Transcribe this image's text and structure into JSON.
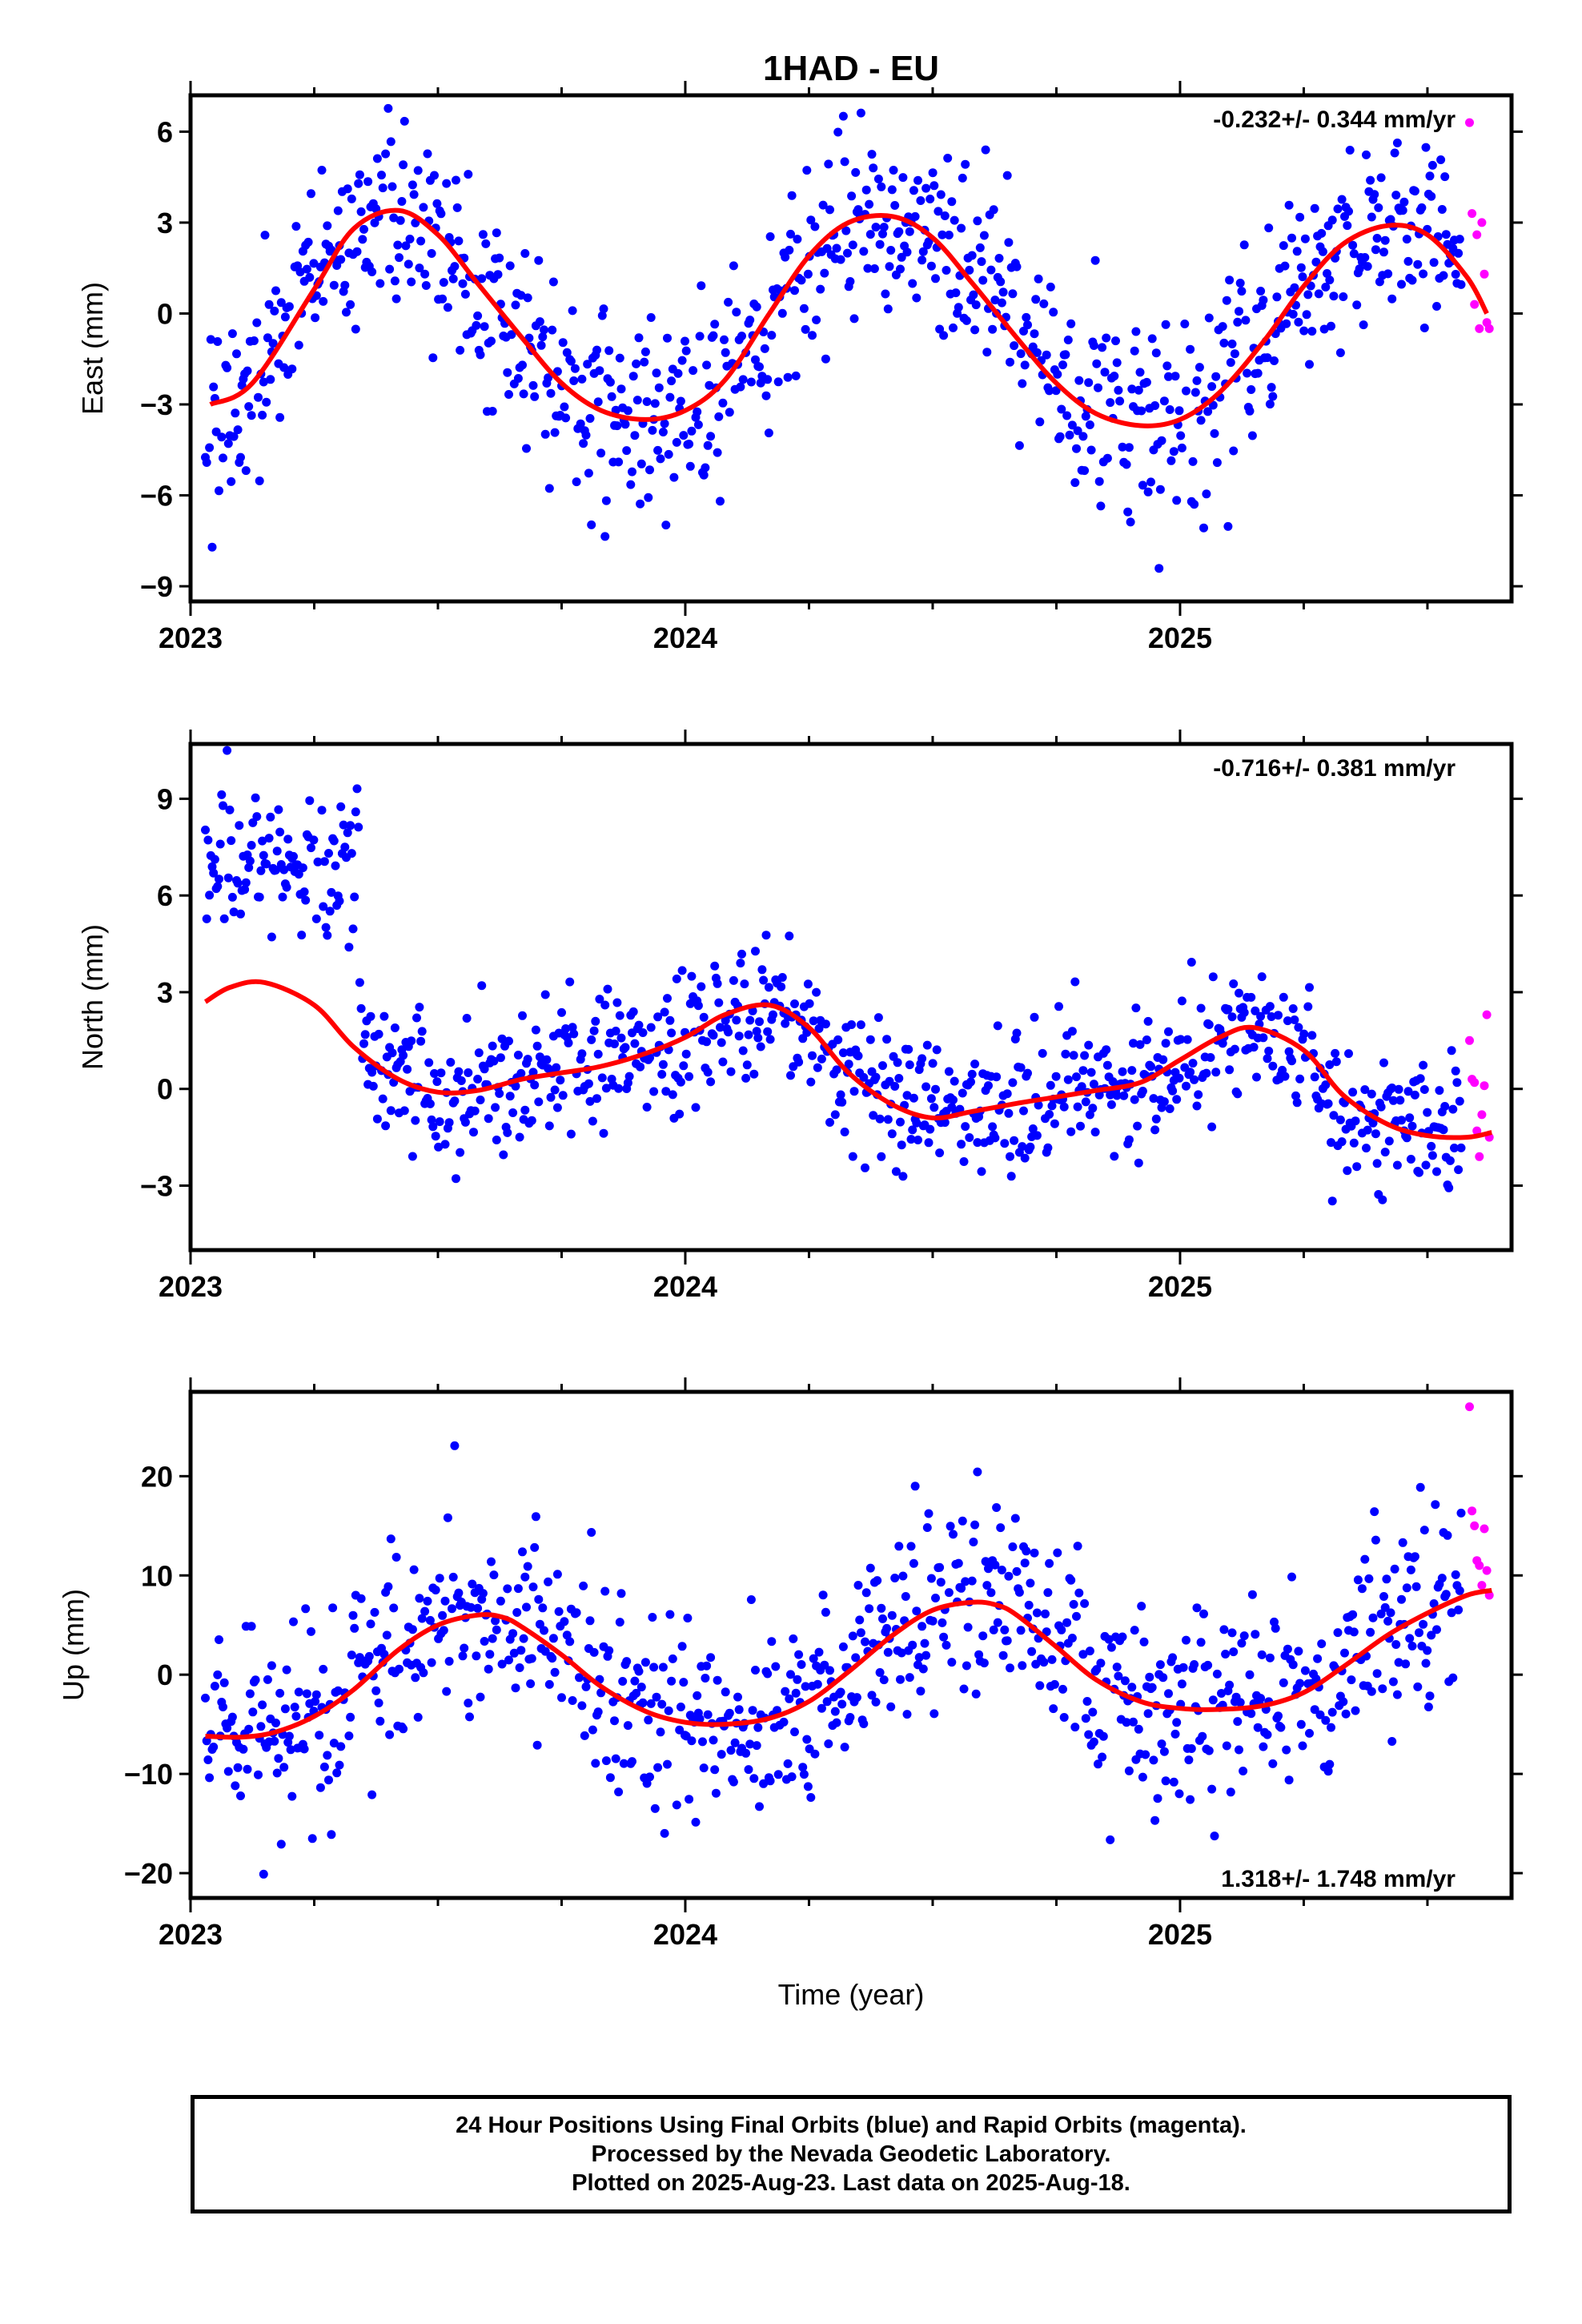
{
  "figure": {
    "title": "1HAD - EU",
    "xlabel": "Time (year)"
  },
  "colors": {
    "final": "#0000ff",
    "rapid": "#ff00ff",
    "model": "#ff0000"
  },
  "footer": {
    "line1": "24 Hour Positions Using Final Orbits (blue) and Rapid Orbits (magenta).",
    "line2": "Processed by the Nevada Geodetic Laboratory.",
    "line3": "Plotted on 2025-Aug-23. Last data on 2025-Aug-18."
  },
  "chart_data": [
    {
      "type": "scatter",
      "name": "east",
      "ylabel": "East (mm)",
      "rate": "-0.232+/- 0.344 mm/yr",
      "rate_position": "top-right",
      "xlim": [
        2023.0,
        2025.67
      ],
      "ylim": [
        -9.5,
        7.2
      ],
      "yticks": [
        6,
        3,
        0,
        -3,
        -6,
        -9
      ],
      "xticks": [
        2023,
        2024,
        2025
      ],
      "model": {
        "x": [
          2023.04,
          2023.125,
          2023.25,
          2023.33,
          2023.42,
          2023.5,
          2023.58,
          2023.67,
          2023.75,
          2023.83,
          2023.92,
          2024.0,
          2024.08,
          2024.17,
          2024.25,
          2024.33,
          2024.42,
          2024.5,
          2024.58,
          2024.67,
          2024.75,
          2024.83,
          2024.92,
          2025.0,
          2025.08,
          2025.17,
          2025.25,
          2025.33,
          2025.42,
          2025.5,
          2025.58,
          2025.62
        ],
        "y": [
          -3.0,
          -2.3,
          0.8,
          2.8,
          3.4,
          2.6,
          1.0,
          -0.8,
          -2.3,
          -3.2,
          -3.5,
          -3.2,
          -2.2,
          0.0,
          1.9,
          3.0,
          3.2,
          2.5,
          1.0,
          -0.8,
          -2.3,
          -3.3,
          -3.7,
          -3.5,
          -2.6,
          -0.9,
          0.9,
          2.3,
          2.9,
          2.6,
          1.2,
          0.0
        ]
      },
      "final_seed": [
        2023.03,
        2025.57,
        0,
        1.6
      ],
      "rapid": {
        "x": [
          2025.585,
          2025.59,
          2025.595,
          2025.6,
          2025.605,
          2025.61,
          2025.615,
          2025.62,
          2025.625
        ],
        "y": [
          6.3,
          3.3,
          0.3,
          2.6,
          -0.5,
          3.0,
          1.3,
          -0.3,
          -0.5
        ]
      }
    },
    {
      "type": "scatter",
      "name": "north",
      "ylabel": "North (mm)",
      "rate": "-0.716+/- 0.381 mm/yr",
      "rate_position": "top-right",
      "xlim": [
        2023.0,
        2025.67
      ],
      "ylim": [
        -5.0,
        10.7
      ],
      "yticks": [
        9,
        6,
        3,
        0,
        -3
      ],
      "xticks": [
        2023,
        2024,
        2025
      ],
      "model": {
        "x": [
          2023.03,
          2023.08,
          2023.15,
          2023.25,
          2023.33,
          2023.42,
          2023.5,
          2023.58,
          2023.67,
          2023.75,
          2023.83,
          2023.92,
          2024.0,
          2024.08,
          2024.17,
          2024.25,
          2024.33,
          2024.42,
          2024.5,
          2024.58,
          2024.67,
          2024.75,
          2024.83,
          2024.92,
          2025.0,
          2025.08,
          2025.15,
          2025.25,
          2025.33,
          2025.42,
          2025.5,
          2025.58,
          2025.63
        ],
        "y": [
          2.7,
          3.15,
          3.3,
          2.6,
          1.3,
          0.3,
          -0.1,
          -0.05,
          0.3,
          0.5,
          0.7,
          1.1,
          1.6,
          2.3,
          2.6,
          1.9,
          0.5,
          -0.5,
          -0.9,
          -0.7,
          -0.45,
          -0.25,
          -0.05,
          0.2,
          0.9,
          1.6,
          1.9,
          1.2,
          -0.2,
          -1.1,
          -1.45,
          -1.5,
          -1.35
        ]
      },
      "final_seed": [
        2023.03,
        2025.57,
        1,
        1.1
      ],
      "rapid": {
        "x": [
          2025.585,
          2025.59,
          2025.595,
          2025.6,
          2025.605,
          2025.61,
          2025.615,
          2025.62,
          2025.625
        ],
        "y": [
          1.5,
          0.3,
          0.2,
          -1.3,
          -2.1,
          -0.8,
          0.1,
          2.3,
          -1.5
        ]
      }
    },
    {
      "type": "scatter",
      "name": "up",
      "ylabel": "Up (mm)",
      "rate": "1.318+/- 1.748 mm/yr",
      "rate_position": "bottom-right",
      "xlim": [
        2023.0,
        2025.67
      ],
      "ylim": [
        -22.5,
        28.5
      ],
      "yticks": [
        20,
        10,
        0,
        -10,
        -20
      ],
      "xticks": [
        2023,
        2024,
        2025
      ],
      "model": {
        "x": [
          2023.03,
          2023.1,
          2023.17,
          2023.25,
          2023.33,
          2023.42,
          2023.5,
          2023.58,
          2023.63,
          2023.67,
          2023.75,
          2023.83,
          2023.92,
          2024.0,
          2024.08,
          2024.17,
          2024.25,
          2024.33,
          2024.42,
          2024.5,
          2024.58,
          2024.63,
          2024.67,
          2024.75,
          2024.83,
          2024.92,
          2025.0,
          2025.08,
          2025.17,
          2025.25,
          2025.33,
          2025.42,
          2025.5,
          2025.58,
          2025.63
        ],
        "y": [
          -6.2,
          -6.3,
          -5.8,
          -4.2,
          -1.5,
          2.5,
          5.0,
          6.0,
          5.8,
          4.8,
          2.0,
          -1.2,
          -3.7,
          -4.8,
          -5.0,
          -4.4,
          -2.7,
          0.3,
          4.0,
          6.5,
          7.3,
          7.0,
          6.0,
          2.8,
          -0.5,
          -2.7,
          -3.4,
          -3.5,
          -3.1,
          -1.8,
          0.8,
          4.0,
          6.2,
          8.0,
          8.5
        ]
      },
      "final_seed": [
        2023.03,
        2025.57,
        2,
        4.8
      ],
      "rapid": {
        "x": [
          2025.585,
          2025.59,
          2025.595,
          2025.6,
          2025.605,
          2025.61,
          2025.615,
          2025.62,
          2025.625
        ],
        "y": [
          27.0,
          16.5,
          15.0,
          11.5,
          11.0,
          9.0,
          14.7,
          10.5,
          8.0
        ]
      }
    }
  ]
}
